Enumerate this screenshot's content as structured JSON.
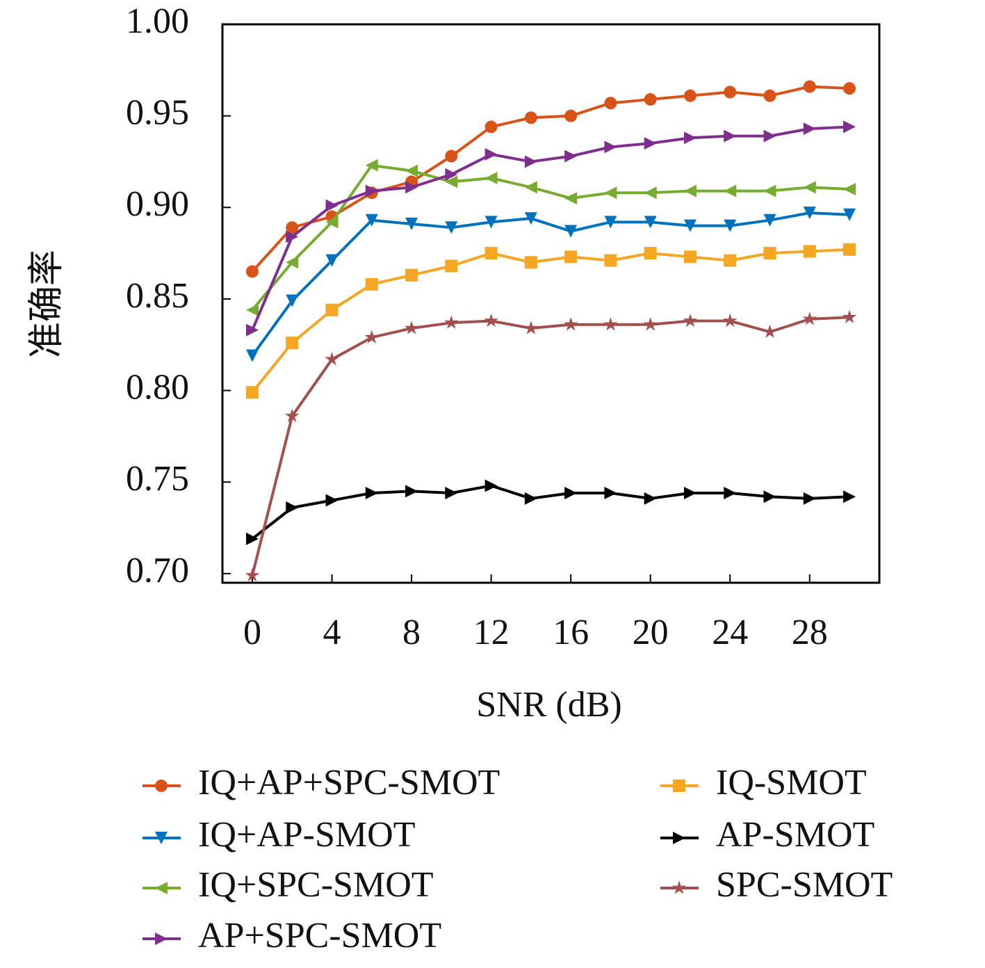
{
  "chart_data": {
    "type": "line",
    "x_label": "SNR (dB)",
    "y_label": "准确率",
    "x": [
      0,
      2,
      4,
      6,
      8,
      10,
      12,
      14,
      16,
      18,
      20,
      22,
      24,
      26,
      28,
      30
    ],
    "xlim": [
      -1.5,
      31.5
    ],
    "xticks": [
      0,
      4,
      8,
      12,
      16,
      20,
      24,
      28
    ],
    "ylim": [
      0.695,
      1.0
    ],
    "yticks": [
      {
        "value": 0.7,
        "label": "0.70"
      },
      0.75,
      {
        "value": 0.8,
        "label": "0.80"
      },
      0.85,
      {
        "value": 0.9,
        "label": "0.90"
      },
      0.95,
      {
        "value": 1.0,
        "label": "1.00"
      }
    ],
    "series": [
      {
        "name": "IQ+AP+SPC-SMOT",
        "color": "#d95319",
        "marker": "circle",
        "values": [
          0.865,
          0.889,
          0.895,
          0.908,
          0.914,
          0.928,
          0.944,
          0.949,
          0.95,
          0.957,
          0.959,
          0.961,
          0.963,
          0.961,
          0.966,
          0.965
        ]
      },
      {
        "name": "IQ+AP-SMOT",
        "color": "#0072bd",
        "marker": "triangle-down",
        "values": [
          0.819,
          0.849,
          0.871,
          0.893,
          0.891,
          0.889,
          0.892,
          0.894,
          0.887,
          0.892,
          0.892,
          0.89,
          0.89,
          0.893,
          0.897,
          0.896
        ]
      },
      {
        "name": "IQ+SPC-SMOT",
        "color": "#77ac30",
        "marker": "triangle-left",
        "values": [
          0.844,
          0.87,
          0.892,
          0.923,
          0.92,
          0.914,
          0.916,
          0.911,
          0.905,
          0.908,
          0.908,
          0.909,
          0.909,
          0.909,
          0.911,
          0.91
        ]
      },
      {
        "name": "AP+SPC-SMOT",
        "color": "#7e2f8e",
        "marker": "triangle-right",
        "values": [
          0.833,
          0.884,
          0.901,
          0.909,
          0.911,
          0.918,
          0.929,
          0.925,
          0.928,
          0.933,
          0.935,
          0.938,
          0.939,
          0.939,
          0.943,
          0.944
        ]
      },
      {
        "name": "IQ-SMOT",
        "color": "#f5a623",
        "marker": "square",
        "values": [
          0.799,
          0.826,
          0.844,
          0.858,
          0.863,
          0.868,
          0.875,
          0.87,
          0.873,
          0.871,
          0.875,
          0.873,
          0.871,
          0.875,
          0.876,
          0.877
        ]
      },
      {
        "name": "AP-SMOT",
        "color": "#000000",
        "marker": "triangle-right",
        "values": [
          0.719,
          0.736,
          0.74,
          0.744,
          0.745,
          0.744,
          0.748,
          0.741,
          0.744,
          0.744,
          0.741,
          0.744,
          0.744,
          0.742,
          0.741,
          0.742
        ]
      },
      {
        "name": "SPC-SMOT",
        "color": "#a2504f",
        "marker": "star",
        "values": [
          0.699,
          0.786,
          0.817,
          0.829,
          0.834,
          0.837,
          0.838,
          0.834,
          0.836,
          0.836,
          0.836,
          0.838,
          0.838,
          0.832,
          0.839,
          0.84
        ]
      }
    ]
  }
}
